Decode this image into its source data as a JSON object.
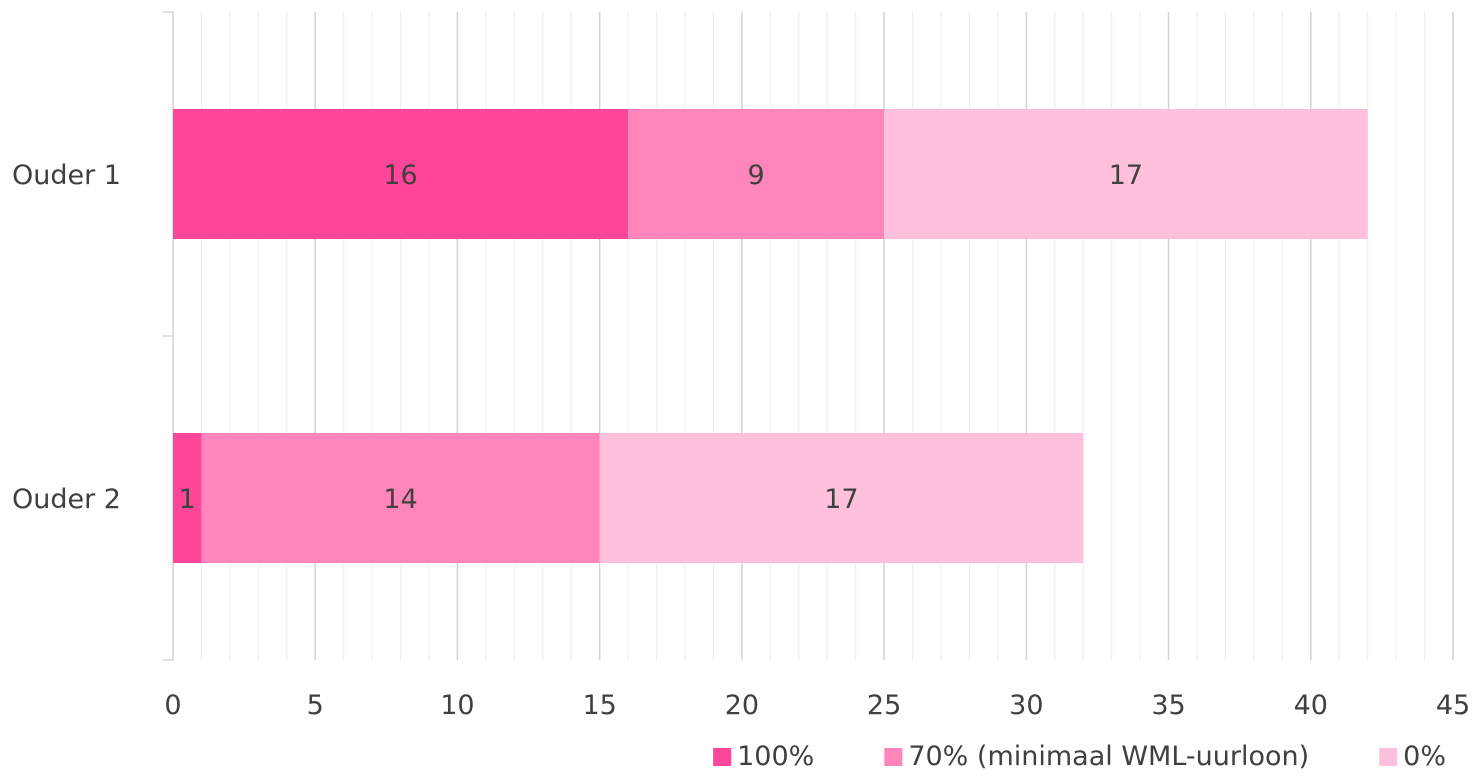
{
  "chart_data": {
    "type": "bar",
    "orientation": "horizontal",
    "stacked": true,
    "categories": [
      "Ouder 1",
      "Ouder 2"
    ],
    "series": [
      {
        "name": "100%",
        "values": [
          16,
          1
        ],
        "color": "#ff4698"
      },
      {
        "name": "70% (minimaal WML-uurloon)",
        "values": [
          9,
          14
        ],
        "color": "#ff85bb"
      },
      {
        "name": "0%",
        "values": [
          17,
          17
        ],
        "color": "#ffc0de"
      }
    ],
    "xlim": [
      0,
      45
    ],
    "xticks": [
      0,
      5,
      10,
      15,
      20,
      25,
      30,
      35,
      40,
      45
    ],
    "xtick_labels": [
      "0",
      "5",
      "10",
      "15",
      "20",
      "25",
      "30",
      "35",
      "40",
      "45"
    ],
    "minor_step": 1,
    "grid": true,
    "data_labels": true,
    "legend": "bottom-right",
    "title": "",
    "xlabel": "",
    "ylabel": ""
  }
}
